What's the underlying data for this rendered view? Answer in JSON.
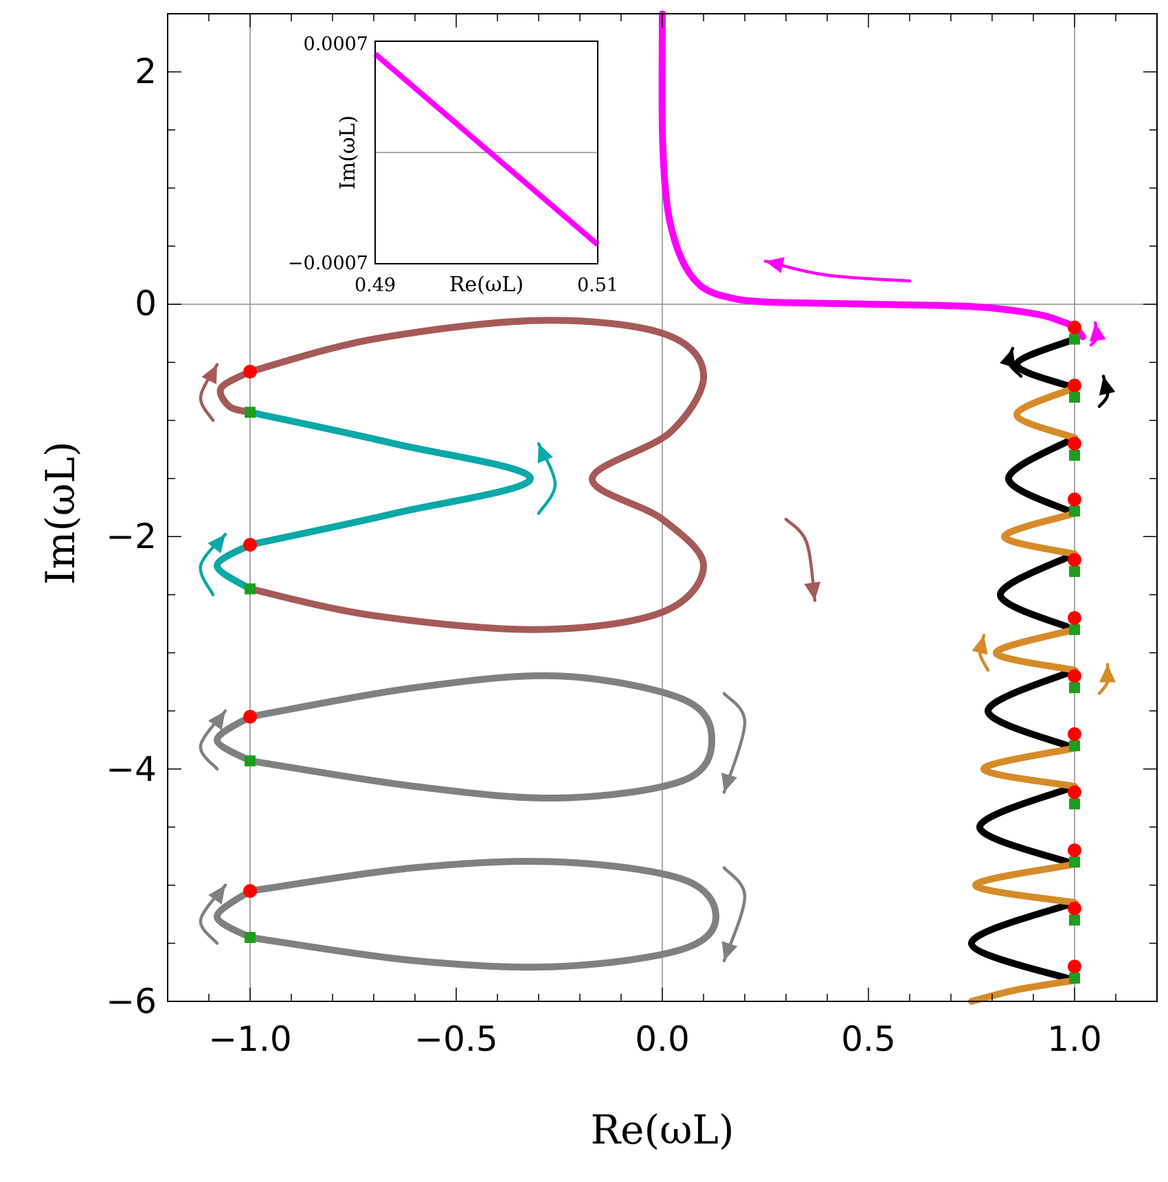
{
  "chart_data": {
    "type": "line",
    "title": "",
    "xlabel": "Re(ωL)",
    "ylabel": "Im(ωL)",
    "xlim": [
      -1.2,
      1.2
    ],
    "ylim": [
      -6,
      2.5
    ],
    "xticks": [
      "−1.0",
      "−0.5",
      "0.0",
      "0.5",
      "1.0"
    ],
    "yticks": [
      "−6",
      "−4",
      "−2",
      "0",
      "2"
    ],
    "grid": "lines at x = −1, 0, 1 and y = 0",
    "legend": "none",
    "colors": {
      "magenta": "#ff00ff",
      "brown": "#a65a58",
      "cyan": "#0aa8a8",
      "gray": "#808080",
      "black": "#000000",
      "orange": "#d68b28",
      "red_marker": "#ff0000",
      "green_marker": "#1e9e1e"
    },
    "series": [
      {
        "color": "magenta",
        "points": [
          [
            0.0,
            2.5
          ],
          [
            0.0,
            1.5
          ],
          [
            0.01,
            0.9
          ],
          [
            0.03,
            0.55
          ],
          [
            0.06,
            0.3
          ],
          [
            0.1,
            0.14
          ],
          [
            0.16,
            0.06
          ],
          [
            0.25,
            0.02
          ],
          [
            0.5,
            0.0
          ],
          [
            0.75,
            -0.02
          ],
          [
            0.9,
            -0.08
          ],
          [
            0.97,
            -0.15
          ],
          [
            1.0,
            -0.2
          ],
          [
            1.02,
            -0.28
          ]
        ]
      },
      {
        "color": "brown",
        "points": [
          [
            -1.0,
            -0.58
          ],
          [
            -1.07,
            -0.72
          ],
          [
            -1.05,
            -0.88
          ],
          [
            -1.0,
            -0.93
          ]
        ]
      },
      {
        "color": "brown",
        "points": [
          [
            -1.0,
            -0.58
          ],
          [
            -0.7,
            -0.3
          ],
          [
            -0.3,
            -0.14
          ],
          [
            0.0,
            -0.25
          ],
          [
            0.1,
            -0.6
          ],
          [
            0.02,
            -1.1
          ],
          [
            -0.17,
            -1.5
          ],
          [
            0.0,
            -1.85
          ],
          [
            0.1,
            -2.25
          ],
          [
            0.0,
            -2.65
          ],
          [
            -0.3,
            -2.8
          ],
          [
            -0.7,
            -2.68
          ],
          [
            -1.0,
            -2.45
          ]
        ]
      },
      {
        "color": "cyan",
        "points": [
          [
            -1.0,
            -0.93
          ],
          [
            -0.65,
            -1.2
          ],
          [
            -0.32,
            -1.5
          ],
          [
            -0.65,
            -1.8
          ],
          [
            -1.0,
            -2.07
          ]
        ]
      },
      {
        "color": "cyan",
        "points": [
          [
            -1.0,
            -2.07
          ],
          [
            -1.08,
            -2.25
          ],
          [
            -1.0,
            -2.45
          ]
        ]
      },
      {
        "color": "gray",
        "points": [
          [
            -1.0,
            -3.55
          ],
          [
            -1.08,
            -3.75
          ],
          [
            -1.0,
            -3.93
          ]
        ]
      },
      {
        "color": "gray",
        "points": [
          [
            -1.0,
            -3.55
          ],
          [
            -0.6,
            -3.3
          ],
          [
            -0.25,
            -3.2
          ],
          [
            0.05,
            -3.4
          ],
          [
            0.12,
            -3.75
          ],
          [
            0.05,
            -4.1
          ],
          [
            -0.25,
            -4.25
          ],
          [
            -0.6,
            -4.15
          ],
          [
            -1.0,
            -3.93
          ]
        ]
      },
      {
        "color": "gray",
        "points": [
          [
            -1.0,
            -5.05
          ],
          [
            -1.08,
            -5.27
          ],
          [
            -1.0,
            -5.45
          ]
        ]
      },
      {
        "color": "gray",
        "points": [
          [
            -1.0,
            -5.05
          ],
          [
            -0.6,
            -4.85
          ],
          [
            -0.25,
            -4.8
          ],
          [
            0.05,
            -4.95
          ],
          [
            0.13,
            -5.27
          ],
          [
            0.05,
            -5.55
          ],
          [
            -0.25,
            -5.7
          ],
          [
            -0.6,
            -5.65
          ],
          [
            -1.0,
            -5.45
          ]
        ]
      },
      {
        "color": "black",
        "points": [
          [
            1.0,
            -0.3
          ],
          [
            0.86,
            -0.52
          ],
          [
            1.0,
            -0.72
          ]
        ]
      },
      {
        "color": "black",
        "points": [
          [
            1.0,
            -1.15
          ],
          [
            0.84,
            -1.5
          ],
          [
            1.0,
            -1.8
          ]
        ]
      },
      {
        "color": "black",
        "points": [
          [
            1.0,
            -2.15
          ],
          [
            0.82,
            -2.5
          ],
          [
            1.0,
            -2.8
          ]
        ]
      },
      {
        "color": "black",
        "points": [
          [
            1.0,
            -3.15
          ],
          [
            0.79,
            -3.5
          ],
          [
            1.0,
            -3.82
          ]
        ]
      },
      {
        "color": "black",
        "points": [
          [
            1.0,
            -4.15
          ],
          [
            0.77,
            -4.5
          ],
          [
            1.0,
            -4.82
          ]
        ]
      },
      {
        "color": "black",
        "points": [
          [
            1.0,
            -5.15
          ],
          [
            0.75,
            -5.5
          ],
          [
            1.0,
            -5.82
          ]
        ]
      },
      {
        "color": "orange",
        "points": [
          [
            1.0,
            -0.72
          ],
          [
            0.86,
            -0.95
          ],
          [
            1.0,
            -1.15
          ]
        ]
      },
      {
        "color": "orange",
        "points": [
          [
            1.0,
            -1.8
          ],
          [
            0.83,
            -2.0
          ],
          [
            1.0,
            -2.15
          ]
        ]
      },
      {
        "color": "orange",
        "points": [
          [
            1.0,
            -2.8
          ],
          [
            0.81,
            -3.0
          ],
          [
            1.0,
            -3.15
          ]
        ]
      },
      {
        "color": "orange",
        "points": [
          [
            1.0,
            -3.82
          ],
          [
            0.78,
            -4.0
          ],
          [
            1.0,
            -4.15
          ]
        ]
      },
      {
        "color": "orange",
        "points": [
          [
            1.0,
            -4.82
          ],
          [
            0.76,
            -5.0
          ],
          [
            1.0,
            -5.15
          ]
        ]
      },
      {
        "color": "orange",
        "points": [
          [
            1.0,
            -5.82
          ],
          [
            0.86,
            -5.9
          ],
          [
            0.75,
            -6.0
          ]
        ]
      }
    ],
    "markers": {
      "red_circles": [
        [
          -1.0,
          -0.58
        ],
        [
          -1.0,
          -2.07
        ],
        [
          -1.0,
          -3.55
        ],
        [
          -1.0,
          -5.05
        ],
        [
          1.0,
          -0.2
        ],
        [
          1.0,
          -0.7
        ],
        [
          1.0,
          -1.2
        ],
        [
          1.0,
          -1.68
        ],
        [
          1.0,
          -2.2
        ],
        [
          1.0,
          -2.7
        ],
        [
          1.0,
          -3.2
        ],
        [
          1.0,
          -3.7
        ],
        [
          1.0,
          -4.2
        ],
        [
          1.0,
          -4.7
        ],
        [
          1.0,
          -5.2
        ],
        [
          1.0,
          -5.7
        ]
      ],
      "green_squares": [
        [
          -1.0,
          -0.93
        ],
        [
          -1.0,
          -2.45
        ],
        [
          -1.0,
          -3.93
        ],
        [
          -1.0,
          -5.45
        ],
        [
          1.0,
          -0.3
        ],
        [
          1.0,
          -0.8
        ],
        [
          1.0,
          -1.3
        ],
        [
          1.0,
          -1.78
        ],
        [
          1.0,
          -2.3
        ],
        [
          1.0,
          -2.8
        ],
        [
          1.0,
          -3.3
        ],
        [
          1.0,
          -3.8
        ],
        [
          1.0,
          -4.3
        ],
        [
          1.0,
          -4.8
        ],
        [
          1.0,
          -5.3
        ],
        [
          1.0,
          -5.8
        ]
      ]
    },
    "arrows": [
      {
        "color": "magenta",
        "points": [
          [
            0.6,
            0.2
          ],
          [
            0.4,
            0.25
          ],
          [
            0.25,
            0.37
          ]
        ]
      },
      {
        "color": "magenta",
        "points": [
          [
            1.04,
            -0.35
          ],
          [
            1.055,
            -0.28
          ],
          [
            1.05,
            -0.16
          ]
        ]
      },
      {
        "color": "brown",
        "points": [
          [
            -1.09,
            -1.0
          ],
          [
            -1.12,
            -0.8
          ],
          [
            -1.08,
            -0.52
          ]
        ]
      },
      {
        "color": "brown",
        "points": [
          [
            0.3,
            -1.85
          ],
          [
            0.35,
            -2.05
          ],
          [
            0.37,
            -2.55
          ]
        ]
      },
      {
        "color": "cyan",
        "points": [
          [
            -0.3,
            -1.8
          ],
          [
            -0.26,
            -1.55
          ],
          [
            -0.3,
            -1.2
          ]
        ]
      },
      {
        "color": "cyan",
        "points": [
          [
            -1.09,
            -2.5
          ],
          [
            -1.12,
            -2.25
          ],
          [
            -1.06,
            -1.98
          ]
        ]
      },
      {
        "color": "gray",
        "points": [
          [
            -1.08,
            -4.0
          ],
          [
            -1.12,
            -3.8
          ],
          [
            -1.06,
            -3.5
          ]
        ]
      },
      {
        "color": "gray",
        "points": [
          [
            0.15,
            -3.35
          ],
          [
            0.2,
            -3.6
          ],
          [
            0.15,
            -4.2
          ]
        ]
      },
      {
        "color": "gray",
        "points": [
          [
            -1.08,
            -5.5
          ],
          [
            -1.12,
            -5.3
          ],
          [
            -1.06,
            -5.0
          ]
        ]
      },
      {
        "color": "gray",
        "points": [
          [
            0.15,
            -4.85
          ],
          [
            0.2,
            -5.1
          ],
          [
            0.15,
            -5.65
          ]
        ]
      },
      {
        "color": "black",
        "points": [
          [
            0.87,
            -0.62
          ],
          [
            0.84,
            -0.5
          ],
          [
            0.85,
            -0.38
          ]
        ]
      },
      {
        "color": "black",
        "points": [
          [
            1.06,
            -0.88
          ],
          [
            1.08,
            -0.78
          ],
          [
            1.07,
            -0.62
          ]
        ]
      },
      {
        "color": "orange",
        "points": [
          [
            0.79,
            -3.15
          ],
          [
            0.77,
            -3.0
          ],
          [
            0.78,
            -2.85
          ]
        ]
      },
      {
        "color": "orange",
        "points": [
          [
            1.06,
            -3.35
          ],
          [
            1.08,
            -3.25
          ],
          [
            1.08,
            -3.1
          ]
        ]
      }
    ],
    "inset": {
      "xlabel": "Re(ωL)",
      "ylabel": "Im(ωL)",
      "xlim": [
        0.49,
        0.51
      ],
      "ylim": [
        -0.0007,
        0.0007
      ],
      "xticks": [
        "0.49",
        "0.51"
      ],
      "yticks": [
        "−0.0007",
        "0.0007"
      ],
      "series": [
        {
          "color": "magenta",
          "points": [
            [
              0.49,
              0.00062
            ],
            [
              0.51,
              -0.00058
            ]
          ]
        }
      ]
    }
  }
}
